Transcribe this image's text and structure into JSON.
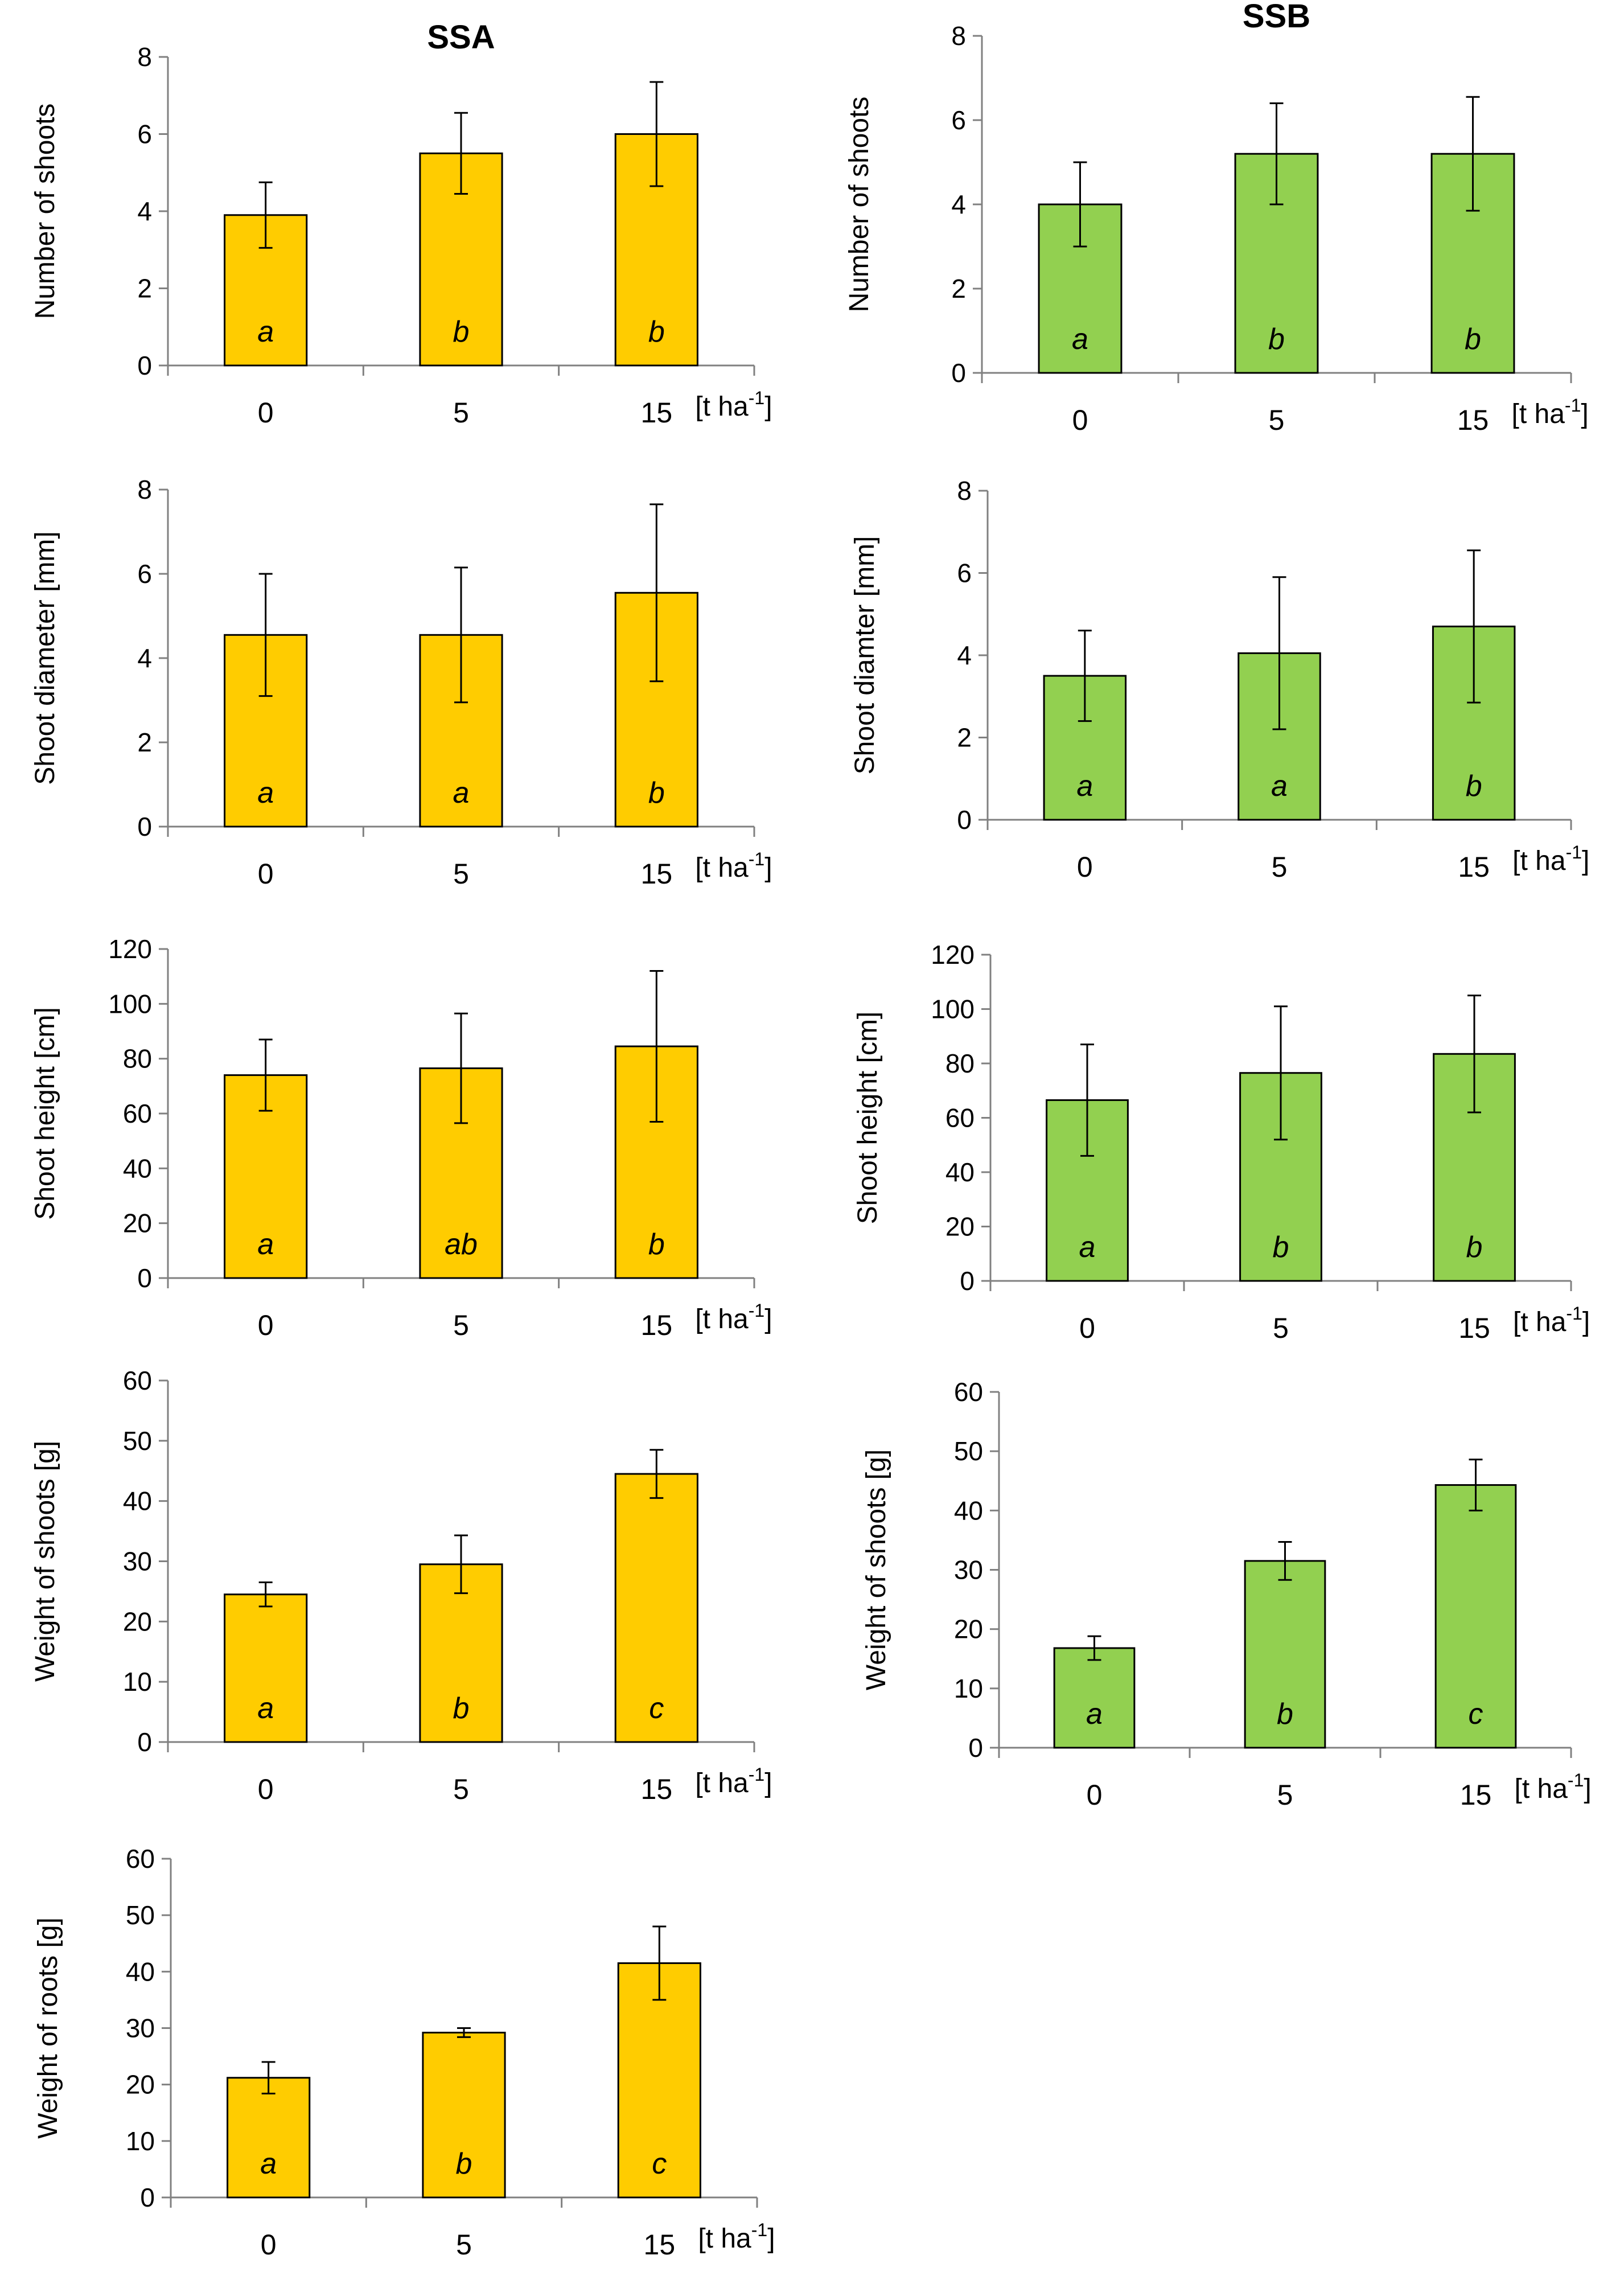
{
  "figure": {
    "title_left": "SSA",
    "title_right": "SSB"
  },
  "colors": {
    "SSA": "#FFCC00",
    "SSB": "#92D050",
    "axis": "#808080",
    "error": "#000000"
  },
  "chart_data": [
    {
      "id": "ssa-shoots-number",
      "type": "bar",
      "title": "SSA",
      "categories": [
        "0",
        "5",
        "15"
      ],
      "unit": "[t ha-1]",
      "ylabel": "Number of shoots",
      "ylim": [
        0,
        8
      ],
      "yticks": [
        0,
        2,
        4,
        6,
        8
      ],
      "values": [
        3.9,
        5.5,
        6.0
      ],
      "errors": [
        0.85,
        1.05,
        1.35
      ],
      "letters": [
        "a",
        "b",
        "b"
      ],
      "color": "#FFCC00"
    },
    {
      "id": "ssb-shoots-number",
      "type": "bar",
      "title": "SSB",
      "categories": [
        "0",
        "5",
        "15"
      ],
      "unit": "[t ha-1]",
      "ylabel": "Number of shoots",
      "ylim": [
        0,
        8
      ],
      "yticks": [
        0,
        2,
        4,
        6,
        8
      ],
      "values": [
        4.0,
        5.2,
        5.2
      ],
      "errors": [
        1.0,
        1.2,
        1.35
      ],
      "letters": [
        "a",
        "b",
        "b"
      ],
      "color": "#92D050"
    },
    {
      "id": "ssa-shoot-diameter",
      "type": "bar",
      "title": "",
      "categories": [
        "0",
        "5",
        "15"
      ],
      "unit": "[t ha-1]",
      "ylabel": "Shoot diameter [mm]",
      "ylim": [
        0,
        8
      ],
      "yticks": [
        0,
        2,
        4,
        6,
        8
      ],
      "values": [
        4.55,
        4.55,
        5.55
      ],
      "errors": [
        1.45,
        1.6,
        2.1
      ],
      "letters": [
        "a",
        "a",
        "b"
      ],
      "color": "#FFCC00"
    },
    {
      "id": "ssb-shoot-diameter",
      "type": "bar",
      "title": "",
      "categories": [
        "0",
        "5",
        "15"
      ],
      "unit": "[t ha-1]",
      "ylabel": "Shoot diamter [mm]",
      "ylim": [
        0,
        8
      ],
      "yticks": [
        0,
        2,
        4,
        6,
        8
      ],
      "values": [
        3.5,
        4.05,
        4.7
      ],
      "errors": [
        1.1,
        1.85,
        1.85
      ],
      "letters": [
        "a",
        "a",
        "b"
      ],
      "color": "#92D050"
    },
    {
      "id": "ssa-shoot-height",
      "type": "bar",
      "title": "",
      "categories": [
        "0",
        "5",
        "15"
      ],
      "unit": "[t ha-1]",
      "ylabel": "Shoot height [cm]",
      "ylim": [
        0,
        120
      ],
      "yticks": [
        0,
        20,
        40,
        60,
        80,
        100,
        120
      ],
      "values": [
        74,
        76.5,
        84.5
      ],
      "errors": [
        13,
        20,
        27.5
      ],
      "letters": [
        "a",
        "ab",
        "b"
      ],
      "color": "#FFCC00"
    },
    {
      "id": "ssb-shoot-height",
      "type": "bar",
      "title": "",
      "categories": [
        "0",
        "5",
        "15"
      ],
      "unit": "[t ha-1]",
      "ylabel": "Shoot height [cm]",
      "ylim": [
        0,
        120
      ],
      "yticks": [
        0,
        20,
        40,
        60,
        80,
        100,
        120
      ],
      "values": [
        66.5,
        76.5,
        83.5
      ],
      "errors": [
        20.5,
        24.5,
        21.5
      ],
      "letters": [
        "a",
        "b",
        "b"
      ],
      "color": "#92D050"
    },
    {
      "id": "ssa-shoots-weight",
      "type": "bar",
      "title": "",
      "categories": [
        "0",
        "5",
        "15"
      ],
      "unit": "[t ha-1]",
      "ylabel": "Weight of shoots [g]",
      "ylim": [
        0,
        60
      ],
      "yticks": [
        0,
        10,
        20,
        30,
        40,
        50,
        60
      ],
      "values": [
        24.5,
        29.5,
        44.5
      ],
      "errors": [
        2.0,
        4.8,
        4.0
      ],
      "letters": [
        "a",
        "b",
        "c"
      ],
      "color": "#FFCC00"
    },
    {
      "id": "ssb-shoots-weight",
      "type": "bar",
      "title": "",
      "categories": [
        "0",
        "5",
        "15"
      ],
      "unit": "[t ha-1]",
      "ylabel": "Weight of shoots [g]",
      "ylim": [
        0,
        60
      ],
      "yticks": [
        0,
        10,
        20,
        30,
        40,
        50,
        60
      ],
      "values": [
        16.8,
        31.5,
        44.3
      ],
      "errors": [
        2.0,
        3.2,
        4.3
      ],
      "letters": [
        "a",
        "b",
        "c"
      ],
      "color": "#92D050"
    },
    {
      "id": "ssa-roots-weight",
      "type": "bar",
      "title": "",
      "categories": [
        "0",
        "5",
        "15"
      ],
      "unit": "[t ha-1]",
      "ylabel": "Weight of roots [g]",
      "ylim": [
        0,
        60
      ],
      "yticks": [
        0,
        10,
        20,
        30,
        40,
        50,
        60
      ],
      "values": [
        21.2,
        29.2,
        41.5
      ],
      "errors": [
        2.8,
        0.8,
        6.5
      ],
      "letters": [
        "a",
        "b",
        "c"
      ],
      "color": "#FFCC00"
    }
  ]
}
